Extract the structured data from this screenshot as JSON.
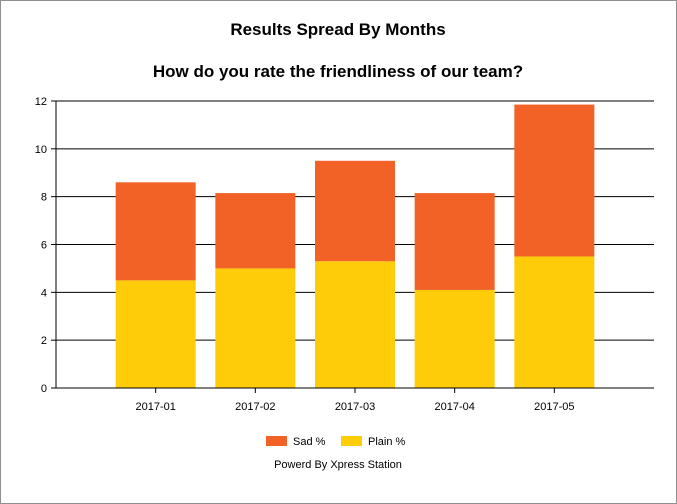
{
  "chart": {
    "title": "Results Spread By Months",
    "subtitle": "How do you rate the friendliness of our team?",
    "credit": "Powerd By Xpress Station"
  },
  "chart_data": {
    "type": "bar",
    "stacked": true,
    "title": "Results Spread By Months",
    "subtitle": "How do you rate the friendliness of our team?",
    "categories": [
      "2017-01",
      "2017-02",
      "2017-03",
      "2017-04",
      "2017-05"
    ],
    "series": [
      {
        "name": "Plain %",
        "color": "#FFCC0A",
        "values": [
          4.5,
          5.0,
          5.3,
          4.1,
          5.5
        ]
      },
      {
        "name": "Sad %",
        "color": "#F26227",
        "values": [
          4.1,
          3.15,
          4.2,
          4.05,
          6.35
        ]
      }
    ],
    "ylim": [
      0,
      12
    ],
    "yticks": [
      0,
      2,
      4,
      6,
      8,
      10,
      12
    ],
    "grid": true,
    "legend": "bottom-center",
    "legend_order": [
      "Sad %",
      "Plain %"
    ]
  }
}
